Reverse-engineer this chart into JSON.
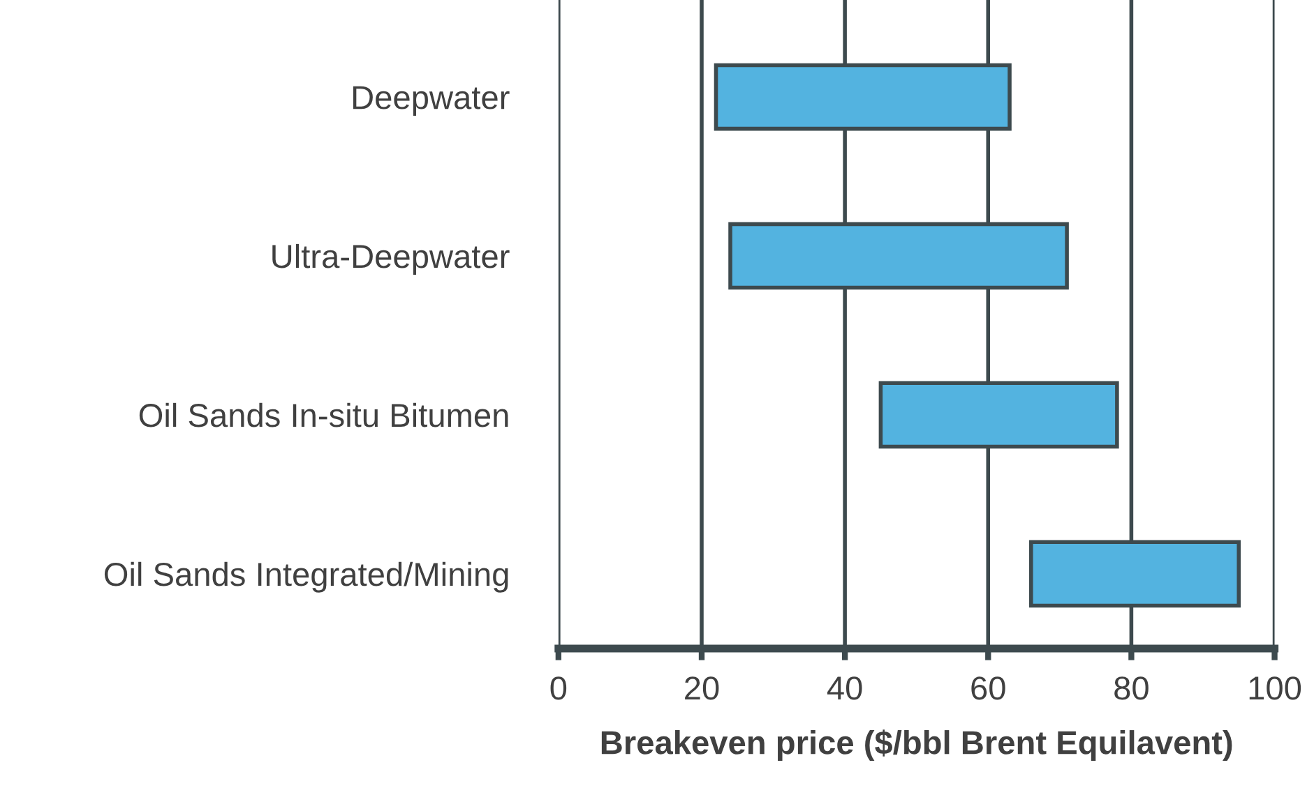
{
  "chart_data": {
    "type": "bar",
    "orientation": "horizontal",
    "xlabel": "Breakeven price ($/bbl Brent Equilavent)",
    "categories": [
      "Deepwater",
      "Ultra-Deepwater",
      "Oil Sands In-situ Bitumen",
      "Oil Sands Integrated/Mining"
    ],
    "base": [
      22,
      24,
      45,
      66
    ],
    "values": [
      41,
      47,
      33,
      29
    ],
    "color": "#53b3e0",
    "xlim": [
      0,
      100
    ],
    "xticks": [
      0,
      20,
      40,
      60,
      80,
      100
    ],
    "grid": "x"
  }
}
